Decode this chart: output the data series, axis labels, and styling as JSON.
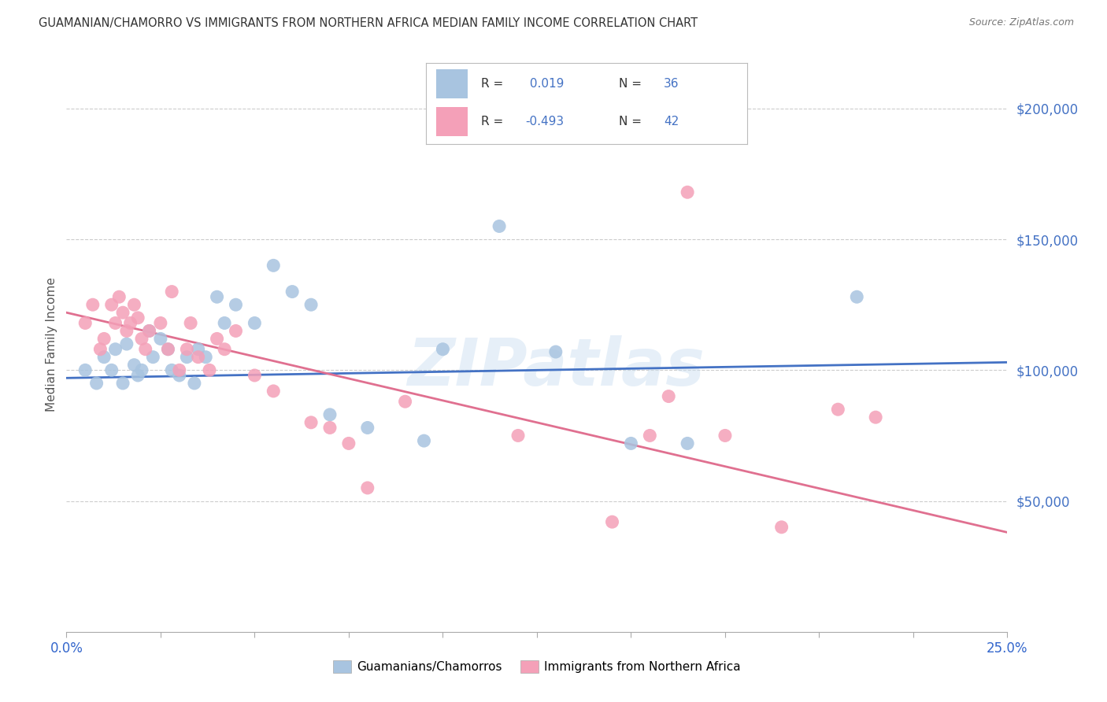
{
  "title": "GUAMANIAN/CHAMORRO VS IMMIGRANTS FROM NORTHERN AFRICA MEDIAN FAMILY INCOME CORRELATION CHART",
  "source": "Source: ZipAtlas.com",
  "ylabel": "Median Family Income",
  "watermark": "ZIPatlas",
  "blue_R": 0.019,
  "blue_N": 36,
  "pink_R": -0.493,
  "pink_N": 42,
  "blue_color": "#a8c4e0",
  "pink_color": "#f4a0b8",
  "blue_line_color": "#4472c4",
  "pink_line_color": "#e07090",
  "legend_label_blue": "Guamanians/Chamorros",
  "legend_label_pink": "Immigrants from Northern Africa",
  "xmin": 0.0,
  "xmax": 0.25,
  "ymin": 0,
  "ymax": 220000,
  "yticks": [
    50000,
    100000,
    150000,
    200000
  ],
  "ytick_labels": [
    "$50,000",
    "$100,000",
    "$150,000",
    "$200,000"
  ],
  "blue_scatter_x": [
    0.005,
    0.008,
    0.01,
    0.012,
    0.013,
    0.015,
    0.016,
    0.018,
    0.019,
    0.02,
    0.022,
    0.023,
    0.025,
    0.027,
    0.028,
    0.03,
    0.032,
    0.034,
    0.035,
    0.037,
    0.04,
    0.042,
    0.045,
    0.05,
    0.055,
    0.06,
    0.065,
    0.07,
    0.08,
    0.095,
    0.1,
    0.115,
    0.13,
    0.15,
    0.165,
    0.21
  ],
  "blue_scatter_y": [
    100000,
    95000,
    105000,
    100000,
    108000,
    95000,
    110000,
    102000,
    98000,
    100000,
    115000,
    105000,
    112000,
    108000,
    100000,
    98000,
    105000,
    95000,
    108000,
    105000,
    128000,
    118000,
    125000,
    118000,
    140000,
    130000,
    125000,
    83000,
    78000,
    73000,
    108000,
    155000,
    107000,
    72000,
    72000,
    128000
  ],
  "pink_scatter_x": [
    0.005,
    0.007,
    0.009,
    0.01,
    0.012,
    0.013,
    0.014,
    0.015,
    0.016,
    0.017,
    0.018,
    0.019,
    0.02,
    0.021,
    0.022,
    0.025,
    0.027,
    0.028,
    0.03,
    0.032,
    0.033,
    0.035,
    0.038,
    0.04,
    0.042,
    0.045,
    0.05,
    0.055,
    0.065,
    0.07,
    0.075,
    0.08,
    0.09,
    0.12,
    0.145,
    0.155,
    0.16,
    0.165,
    0.175,
    0.19,
    0.205,
    0.215
  ],
  "pink_scatter_y": [
    118000,
    125000,
    108000,
    112000,
    125000,
    118000,
    128000,
    122000,
    115000,
    118000,
    125000,
    120000,
    112000,
    108000,
    115000,
    118000,
    108000,
    130000,
    100000,
    108000,
    118000,
    105000,
    100000,
    112000,
    108000,
    115000,
    98000,
    92000,
    80000,
    78000,
    72000,
    55000,
    88000,
    75000,
    42000,
    75000,
    90000,
    168000,
    75000,
    40000,
    85000,
    82000
  ],
  "blue_line_x": [
    0.0,
    0.25
  ],
  "blue_line_y": [
    97000,
    103000
  ],
  "pink_line_x": [
    0.0,
    0.25
  ],
  "pink_line_y": [
    122000,
    38000
  ]
}
